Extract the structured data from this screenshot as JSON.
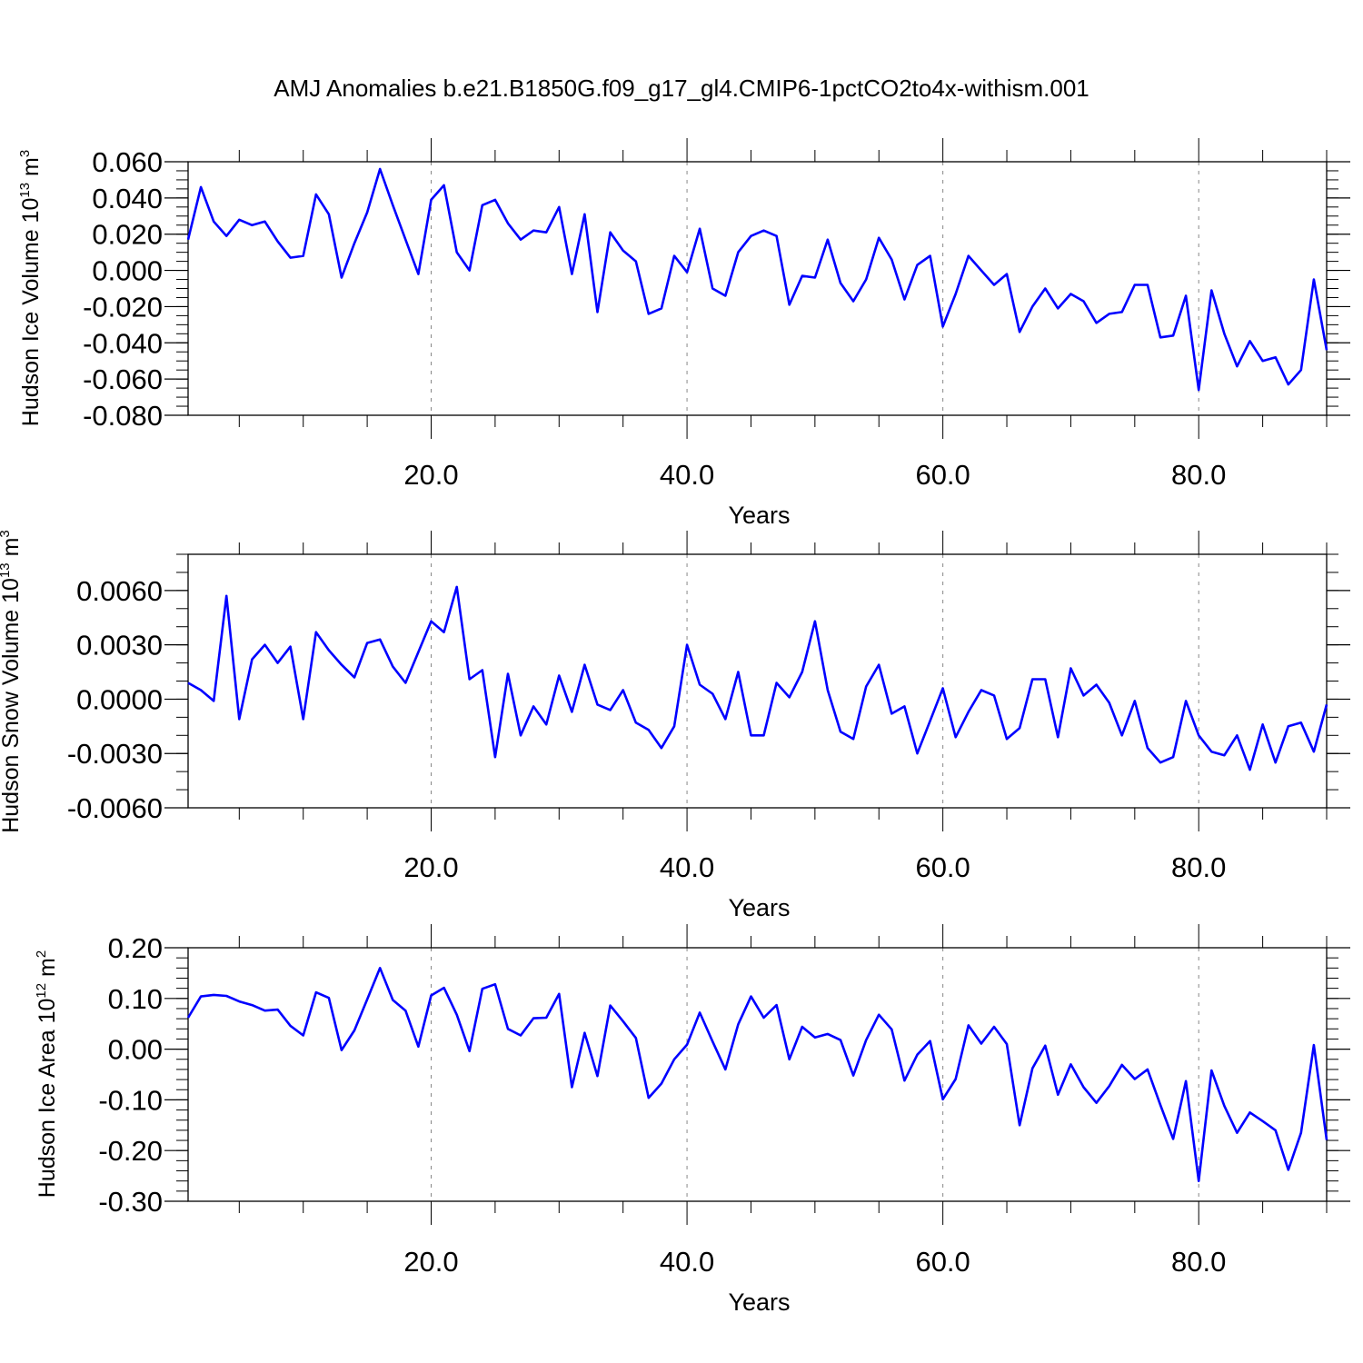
{
  "title": "AMJ Anomalies b.e21.B1850G.f09_g17_gl4.CMIP6-1pctCO2to4x-withism.001",
  "colors": {
    "series": "#0000ff",
    "axis": "#000000",
    "grid": "#888888"
  },
  "chart_data": [
    {
      "type": "line",
      "ylabel": {
        "text": "Hudson Ice Volume 10",
        "exp": "13",
        "unit": " m",
        "unit_exp": "3"
      },
      "xlabel": "Years",
      "xlim": [
        1,
        90
      ],
      "ylim": [
        -0.08,
        0.06
      ],
      "xticks": [
        20,
        40,
        60,
        80
      ],
      "xtick_labels": [
        "20.0",
        "40.0",
        "60.0",
        "80.0"
      ],
      "yticks": [
        0.06,
        0.04,
        0.02,
        0.0,
        -0.02,
        -0.04,
        -0.06,
        -0.08
      ],
      "ytick_labels": [
        "0.060",
        "0.040",
        "0.020",
        "0.000",
        "-0.020",
        "-0.040",
        "-0.060",
        "-0.080"
      ],
      "yminor_step": 0.005,
      "grid": "vertical dashed at major x ticks",
      "x": [
        1,
        2,
        3,
        4,
        5,
        6,
        7,
        8,
        9,
        10,
        11,
        12,
        13,
        14,
        15,
        16,
        17,
        18,
        19,
        20,
        21,
        22,
        23,
        24,
        25,
        26,
        27,
        28,
        29,
        30,
        31,
        32,
        33,
        34,
        35,
        36,
        37,
        38,
        39,
        40,
        41,
        42,
        43,
        44,
        45,
        46,
        47,
        48,
        49,
        50,
        51,
        52,
        53,
        54,
        55,
        56,
        57,
        58,
        59,
        60,
        61,
        62,
        63,
        64,
        65,
        66,
        67,
        68,
        69,
        70,
        71,
        72,
        73,
        74,
        75,
        76,
        77,
        78,
        79,
        80,
        81,
        82,
        83,
        84,
        85,
        86,
        87,
        88,
        89,
        90
      ],
      "values": [
        0.017,
        0.046,
        0.027,
        0.019,
        0.028,
        0.025,
        0.027,
        0.016,
        0.007,
        0.008,
        0.042,
        0.031,
        -0.004,
        0.015,
        0.032,
        0.056,
        0.036,
        0.017,
        -0.002,
        0.039,
        0.047,
        0.01,
        0.0,
        0.036,
        0.039,
        0.026,
        0.017,
        0.022,
        0.021,
        0.035,
        -0.002,
        0.031,
        -0.023,
        0.021,
        0.011,
        0.005,
        -0.024,
        -0.021,
        0.008,
        -0.001,
        0.023,
        -0.01,
        -0.014,
        0.01,
        0.019,
        0.022,
        0.019,
        -0.019,
        -0.003,
        -0.004,
        0.017,
        -0.007,
        -0.017,
        -0.005,
        0.018,
        0.006,
        -0.016,
        0.003,
        0.008,
        -0.031,
        -0.013,
        0.008,
        0.0,
        -0.008,
        -0.002,
        -0.034,
        -0.02,
        -0.01,
        -0.021,
        -0.013,
        -0.017,
        -0.029,
        -0.024,
        -0.023,
        -0.008,
        -0.008,
        -0.037,
        -0.036,
        -0.014,
        -0.066,
        -0.011,
        -0.035,
        -0.053,
        -0.039,
        -0.05,
        -0.048,
        -0.063,
        -0.055,
        -0.005,
        -0.044
      ]
    },
    {
      "type": "line",
      "ylabel": {
        "text": "Hudson Snow Volume 10",
        "exp": "13",
        "unit": " m",
        "unit_exp": "3"
      },
      "xlabel": "Years",
      "xlim": [
        1,
        90
      ],
      "ylim": [
        -0.006,
        0.008
      ],
      "xticks": [
        20,
        40,
        60,
        80
      ],
      "xtick_labels": [
        "20.0",
        "40.0",
        "60.0",
        "80.0"
      ],
      "yticks": [
        0.006,
        0.003,
        0.0,
        -0.003,
        -0.006
      ],
      "ytick_labels": [
        "0.0060",
        "0.0030",
        "0.0000",
        "-0.0030",
        "-0.0060"
      ],
      "yminor_step": 0.001,
      "grid": "vertical dashed at major x ticks",
      "x": [
        1,
        2,
        3,
        4,
        5,
        6,
        7,
        8,
        9,
        10,
        11,
        12,
        13,
        14,
        15,
        16,
        17,
        18,
        19,
        20,
        21,
        22,
        23,
        24,
        25,
        26,
        27,
        28,
        29,
        30,
        31,
        32,
        33,
        34,
        35,
        36,
        37,
        38,
        39,
        40,
        41,
        42,
        43,
        44,
        45,
        46,
        47,
        48,
        49,
        50,
        51,
        52,
        53,
        54,
        55,
        56,
        57,
        58,
        59,
        60,
        61,
        62,
        63,
        64,
        65,
        66,
        67,
        68,
        69,
        70,
        71,
        72,
        73,
        74,
        75,
        76,
        77,
        78,
        79,
        80,
        81,
        82,
        83,
        84,
        85,
        86,
        87,
        88,
        89,
        90
      ],
      "values": [
        0.0009,
        0.0005,
        -0.0001,
        0.0057,
        -0.0011,
        0.0022,
        0.003,
        0.002,
        0.0029,
        -0.0011,
        0.0037,
        0.0027,
        0.0019,
        0.0012,
        0.0031,
        0.0033,
        0.0018,
        0.0009,
        0.0026,
        0.0043,
        0.0037,
        0.0062,
        0.0011,
        0.0016,
        -0.0032,
        0.0014,
        -0.002,
        -0.0004,
        -0.0014,
        0.0013,
        -0.0007,
        0.0019,
        -0.0003,
        -0.0006,
        0.0005,
        -0.0013,
        -0.0017,
        -0.0027,
        -0.0015,
        0.003,
        0.0008,
        0.0003,
        -0.0011,
        0.0015,
        -0.002,
        -0.002,
        0.0009,
        0.0001,
        0.0015,
        0.0043,
        0.0005,
        -0.0018,
        -0.0022,
        0.0007,
        0.0019,
        -0.0008,
        -0.0004,
        -0.003,
        -0.0012,
        0.0006,
        -0.0021,
        -0.0007,
        0.0005,
        0.0002,
        -0.0022,
        -0.0016,
        0.0011,
        0.0011,
        -0.0021,
        0.0017,
        0.0002,
        0.0008,
        -0.0002,
        -0.002,
        -0.0001,
        -0.0027,
        -0.0035,
        -0.0032,
        -0.0001,
        -0.002,
        -0.0029,
        -0.0031,
        -0.002,
        -0.0039,
        -0.0014,
        -0.0035,
        -0.0015,
        -0.0013,
        -0.0029,
        -0.0003
      ]
    },
    {
      "type": "line",
      "ylabel": {
        "text": "Hudson Ice Area 10",
        "exp": "12",
        "unit": " m",
        "unit_exp": "2"
      },
      "xlabel": "Years",
      "xlim": [
        1,
        90
      ],
      "ylim": [
        -0.3,
        0.2
      ],
      "xticks": [
        20,
        40,
        60,
        80
      ],
      "xtick_labels": [
        "20.0",
        "40.0",
        "60.0",
        "80.0"
      ],
      "yticks": [
        0.2,
        0.1,
        0.0,
        -0.1,
        -0.2,
        -0.3
      ],
      "ytick_labels": [
        "0.20",
        "0.10",
        "0.00",
        "-0.10",
        "-0.20",
        "-0.30"
      ],
      "yminor_step": 0.02,
      "grid": "vertical dashed at major x ticks",
      "x": [
        1,
        2,
        3,
        4,
        5,
        6,
        7,
        8,
        9,
        10,
        11,
        12,
        13,
        14,
        15,
        16,
        17,
        18,
        19,
        20,
        21,
        22,
        23,
        24,
        25,
        26,
        27,
        28,
        29,
        30,
        31,
        32,
        33,
        34,
        35,
        36,
        37,
        38,
        39,
        40,
        41,
        42,
        43,
        44,
        45,
        46,
        47,
        48,
        49,
        50,
        51,
        52,
        53,
        54,
        55,
        56,
        57,
        58,
        59,
        60,
        61,
        62,
        63,
        64,
        65,
        66,
        67,
        68,
        69,
        70,
        71,
        72,
        73,
        74,
        75,
        76,
        77,
        78,
        79,
        80,
        81,
        82,
        83,
        84,
        85,
        86,
        87,
        88,
        89,
        90
      ],
      "values": [
        0.062,
        0.104,
        0.107,
        0.105,
        0.094,
        0.087,
        0.076,
        0.078,
        0.046,
        0.027,
        0.112,
        0.101,
        -0.002,
        0.037,
        0.098,
        0.16,
        0.097,
        0.076,
        0.005,
        0.106,
        0.121,
        0.068,
        -0.004,
        0.119,
        0.128,
        0.04,
        0.027,
        0.061,
        0.062,
        0.109,
        -0.075,
        0.032,
        -0.053,
        0.086,
        0.055,
        0.022,
        -0.096,
        -0.068,
        -0.02,
        0.009,
        0.072,
        0.015,
        -0.04,
        0.049,
        0.104,
        0.062,
        0.087,
        -0.02,
        0.044,
        0.023,
        0.03,
        0.018,
        -0.052,
        0.018,
        0.068,
        0.039,
        -0.062,
        -0.011,
        0.016,
        -0.099,
        -0.059,
        0.047,
        0.011,
        0.044,
        0.01,
        -0.15,
        -0.038,
        0.007,
        -0.09,
        -0.03,
        -0.075,
        -0.106,
        -0.073,
        -0.031,
        -0.059,
        -0.04,
        -0.11,
        -0.177,
        -0.063,
        -0.26,
        -0.042,
        -0.112,
        -0.165,
        -0.125,
        -0.142,
        -0.16,
        -0.238,
        -0.165,
        0.008,
        -0.179
      ]
    }
  ]
}
